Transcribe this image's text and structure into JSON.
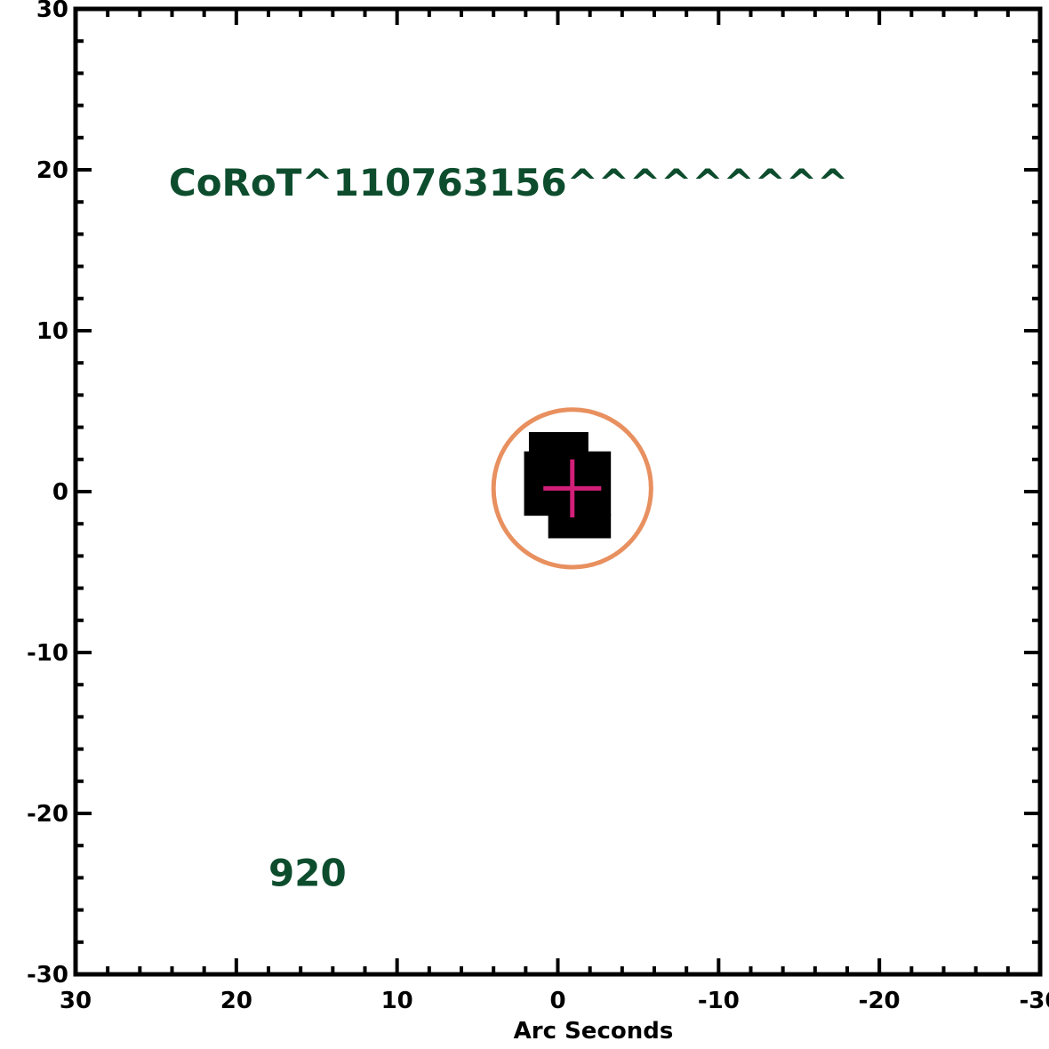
{
  "chart_data": {
    "type": "scatter",
    "xlabel": "Arc Seconds",
    "ylabel": "",
    "xlim": [
      30,
      -30
    ],
    "ylim": [
      -30,
      30
    ],
    "x_ticks": [
      30,
      20,
      10,
      0,
      -10,
      -20,
      -30
    ],
    "y_ticks": [
      30,
      20,
      10,
      0,
      -10,
      -20,
      -30
    ],
    "x_tick_labels": [
      "30",
      "20",
      "10",
      "0",
      "-10",
      "-20",
      "-30"
    ],
    "y_tick_labels": [
      "30",
      "20",
      "10",
      "0",
      "-10",
      "-20",
      "-30"
    ],
    "grid": false,
    "annotations": [
      {
        "text": "CoRoT^110763156^^^^^^^^^",
        "x": 24.2,
        "y": 18.4
      },
      {
        "text": "920",
        "x": 18.0,
        "y": -24.5
      }
    ],
    "target_mask": {
      "description": "black pixel mask",
      "cells": [
        {
          "x0": 1.8,
          "x1": -1.9,
          "y0": 1.2,
          "y1": 3.7
        },
        {
          "x0": 2.1,
          "x1": -3.3,
          "y0": -1.5,
          "y1": 2.5
        },
        {
          "x0": 0.6,
          "x1": -3.3,
          "y0": -2.9,
          "y1": -1.4
        }
      ]
    },
    "aperture_circle": {
      "cx": -0.9,
      "cy": 0.2,
      "r": 4.9
    },
    "target_marker": {
      "x": -0.9,
      "y": 0.2,
      "size": 1.8
    }
  },
  "colors": {
    "axis": "#000000",
    "annotation": "#0d4d2e",
    "circle": "#e8905f",
    "marker": "#d21f78",
    "mask": "#000000"
  }
}
